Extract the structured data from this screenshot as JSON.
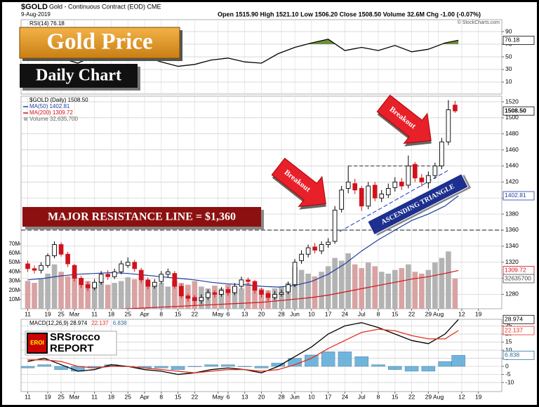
{
  "header": {
    "symbol": "$GOLD",
    "name": "Gold - Continuous Contract (EOD) CME",
    "date": "9-Aug-2019",
    "quote": "Open 1515.90  High 1521.10  Low 1506.20  Close 1508.50  Volume 32.6M  Chg -1.00 (-0.07%)",
    "credit": "© StockCharts.com"
  },
  "overlay": {
    "title": "Gold Price",
    "subtitle": "Daily Chart",
    "resistance_label": "MAJOR RESISTANCE LINE = $1,360",
    "breakouts": [
      "Breakout",
      "Breakout"
    ],
    "pattern": "ASCENDING TRIANGLE",
    "logo": {
      "badge": "EROI",
      "name": "SRSrocco",
      "tag": "REPORT"
    }
  },
  "chart_data": [
    {
      "type": "line",
      "title": "RSI(14) 76.18",
      "x": [
        0,
        5,
        10,
        15,
        20,
        25,
        30,
        35,
        40,
        45,
        50,
        55,
        60,
        65,
        70,
        75,
        80,
        85,
        90,
        95,
        100,
        105,
        110,
        115,
        120,
        125,
        129
      ],
      "series": [
        {
          "color": "#000000",
          "values": [
            55,
            62,
            48,
            40,
            52,
            58,
            45,
            50,
            42,
            35,
            38,
            45,
            48,
            42,
            40,
            55,
            65,
            72,
            78,
            60,
            65,
            60,
            68,
            58,
            62,
            72,
            76.18
          ],
          "value_label": "76.18"
        }
      ],
      "fill_above": 70,
      "fill_color": "#6e8f3c",
      "ylim": [
        -8.9,
        108.9
      ],
      "yticks": [
        90,
        70,
        50,
        30,
        10
      ],
      "grid": true
    },
    {
      "type": "candlestick",
      "title": "$GOLD (Daily) 1508.50",
      "x": [
        0,
        2,
        4,
        6,
        8,
        10,
        12,
        14,
        16,
        18,
        20,
        22,
        24,
        26,
        28,
        30,
        32,
        34,
        36,
        38,
        40,
        42,
        44,
        46,
        48,
        50,
        52,
        54,
        56,
        58,
        60,
        62,
        64,
        66,
        68,
        70,
        72,
        74,
        76,
        78,
        80,
        82,
        84,
        86,
        88,
        90,
        92,
        94,
        96,
        98,
        100,
        102,
        104,
        106,
        108,
        110,
        112,
        114,
        116,
        118,
        120,
        122,
        124,
        126,
        128
      ],
      "open": [
        1318,
        1312,
        1310,
        1316,
        1328,
        1342,
        1330,
        1316,
        1300,
        1292,
        1288,
        1295,
        1305,
        1302,
        1308,
        1316,
        1320,
        1310,
        1298,
        1290,
        1296,
        1305,
        1306,
        1290,
        1278,
        1276,
        1272,
        1276,
        1282,
        1280,
        1286,
        1282,
        1290,
        1298,
        1296,
        1285,
        1281,
        1276,
        1280,
        1283,
        1292,
        1322,
        1330,
        1339,
        1334,
        1342,
        1346,
        1386,
        1412,
        1418,
        1412,
        1390,
        1416,
        1400,
        1404,
        1413,
        1420,
        1416,
        1442,
        1425,
        1419,
        1428,
        1440,
        1470,
        1515.9
      ],
      "high": [
        1322,
        1316,
        1320,
        1331,
        1346,
        1345,
        1333,
        1318,
        1303,
        1296,
        1299,
        1309,
        1310,
        1312,
        1322,
        1326,
        1323,
        1313,
        1301,
        1299,
        1309,
        1312,
        1309,
        1293,
        1281,
        1279,
        1280,
        1286,
        1285,
        1289,
        1289,
        1294,
        1302,
        1301,
        1298,
        1288,
        1284,
        1284,
        1286,
        1296,
        1324,
        1335,
        1342,
        1344,
        1346,
        1350,
        1390,
        1415,
        1440,
        1424,
        1415,
        1420,
        1420,
        1410,
        1418,
        1426,
        1425,
        1453,
        1445,
        1430,
        1433,
        1444,
        1475,
        1522,
        1521.1
      ],
      "low": [
        1308,
        1306,
        1306,
        1313,
        1325,
        1327,
        1314,
        1296,
        1288,
        1284,
        1285,
        1292,
        1298,
        1299,
        1305,
        1313,
        1308,
        1294,
        1286,
        1287,
        1293,
        1301,
        1287,
        1275,
        1271,
        1266,
        1268,
        1273,
        1276,
        1277,
        1278,
        1279,
        1287,
        1292,
        1281,
        1276,
        1272,
        1273,
        1277,
        1280,
        1289,
        1318,
        1326,
        1331,
        1330,
        1338,
        1343,
        1382,
        1406,
        1405,
        1384,
        1386,
        1396,
        1395,
        1400,
        1408,
        1410,
        1412,
        1420,
        1414,
        1412,
        1424,
        1436,
        1466,
        1506.2
      ],
      "close": [
        1312,
        1310,
        1316,
        1328,
        1342,
        1330,
        1318,
        1300,
        1292,
        1288,
        1295,
        1305,
        1302,
        1308,
        1318,
        1320,
        1312,
        1298,
        1290,
        1295,
        1305,
        1308,
        1290,
        1278,
        1275,
        1272,
        1276,
        1282,
        1280,
        1285,
        1282,
        1290,
        1298,
        1296,
        1285,
        1280,
        1276,
        1280,
        1282,
        1292,
        1320,
        1330,
        1338,
        1335,
        1342,
        1345,
        1385,
        1410,
        1420,
        1410,
        1390,
        1415,
        1400,
        1405,
        1412,
        1420,
        1415,
        1440,
        1425,
        1420,
        1428,
        1440,
        1470,
        1510,
        1508.5
      ],
      "up_color": "#000000",
      "down_color": "#d1121b",
      "value_label": "1508.50",
      "volume": {
        "name": "Volume 32,635,700",
        "up_color": "#b3b3b3",
        "down_color": "#d9a3a3",
        "value_label": "32635700",
        "values": [
          30,
          28,
          32,
          38,
          48,
          40,
          35,
          38,
          33,
          30,
          28,
          30,
          26,
          28,
          30,
          34,
          32,
          36,
          30,
          26,
          28,
          24,
          30,
          28,
          26,
          30,
          24,
          22,
          25,
          22,
          26,
          24,
          22,
          28,
          25,
          22,
          20,
          22,
          24,
          28,
          45,
          42,
          38,
          35,
          40,
          46,
          55,
          52,
          60,
          48,
          44,
          50,
          46,
          40,
          38,
          42,
          44,
          48,
          40,
          38,
          42,
          50,
          55,
          62,
          32.6357
        ]
      },
      "lines": [
        {
          "name": "MA(50) 1402.81",
          "color": "#1f3f9f",
          "value_label": "1402.81",
          "x": [
            0,
            5,
            10,
            15,
            20,
            25,
            30,
            35,
            40,
            45,
            50,
            55,
            60,
            65,
            70,
            75,
            80,
            85,
            90,
            95,
            100,
            105,
            110,
            115,
            120,
            125,
            129
          ],
          "values": [
            1298,
            1300,
            1303,
            1305,
            1306,
            1307,
            1306,
            1304,
            1302,
            1300,
            1298,
            1295,
            1293,
            1292,
            1290,
            1289,
            1291,
            1296,
            1305,
            1318,
            1334,
            1348,
            1360,
            1372,
            1380,
            1390,
            1402.81
          ]
        },
        {
          "name": "MA(200) 1309.72",
          "color": "#d1121b",
          "value_label": "1309.72",
          "x": [
            0,
            5,
            10,
            15,
            20,
            25,
            30,
            35,
            40,
            45,
            50,
            55,
            60,
            65,
            70,
            75,
            80,
            85,
            90,
            95,
            100,
            105,
            110,
            115,
            120,
            125,
            129
          ],
          "values": [
            1252,
            1254,
            1256,
            1258,
            1260,
            1261,
            1262,
            1263,
            1264,
            1265,
            1266,
            1267,
            1268,
            1269,
            1270,
            1272,
            1274,
            1276,
            1279,
            1283,
            1287,
            1291,
            1295,
            1299,
            1302,
            1306,
            1309.72
          ]
        }
      ],
      "resistance": 1360,
      "triangle_top": 1440,
      "ylim": [
        1262,
        1527
      ],
      "yticks": [
        1520,
        1500,
        1480,
        1460,
        1440,
        1420,
        1400,
        1380,
        1360,
        1340,
        1320,
        1300,
        1280
      ],
      "vlim": [
        0,
        230
      ],
      "vticks": [
        {
          "value": 70,
          "label": "70M"
        },
        {
          "value": 60,
          "label": "60M"
        },
        {
          "value": 50,
          "label": "50M"
        },
        {
          "value": 40,
          "label": "40M"
        },
        {
          "value": 30,
          "label": "30M"
        },
        {
          "value": 20,
          "label": "20M"
        },
        {
          "value": 10,
          "label": "10M"
        }
      ],
      "xlim": [
        -2,
        142
      ],
      "xticks": [
        {
          "value": 0,
          "label": "11"
        },
        {
          "value": 6,
          "label": "19"
        },
        {
          "value": 10,
          "label": "25"
        },
        {
          "value": 14,
          "label": "Mar"
        },
        {
          "value": 20,
          "label": "11"
        },
        {
          "value": 25,
          "label": "18"
        },
        {
          "value": 30,
          "label": "25"
        },
        {
          "value": 35,
          "label": "Apr"
        },
        {
          "value": 40,
          "label": "8"
        },
        {
          "value": 45,
          "label": "15"
        },
        {
          "value": 50,
          "label": "22"
        },
        {
          "value": 57,
          "label": "May"
        },
        {
          "value": 60,
          "label": "6"
        },
        {
          "value": 65,
          "label": "13"
        },
        {
          "value": 70,
          "label": "20"
        },
        {
          "value": 76,
          "label": "28"
        },
        {
          "value": 80,
          "label": "Jun"
        },
        {
          "value": 85,
          "label": "10"
        },
        {
          "value": 90,
          "label": "17"
        },
        {
          "value": 95,
          "label": "24"
        },
        {
          "value": 100,
          "label": "Jul"
        },
        {
          "value": 105,
          "label": "8"
        },
        {
          "value": 110,
          "label": "15"
        },
        {
          "value": 115,
          "label": "22"
        },
        {
          "value": 120,
          "label": "29"
        },
        {
          "value": 123,
          "label": "Aug"
        },
        {
          "value": 130,
          "label": "12"
        },
        {
          "value": 135,
          "label": "19"
        }
      ],
      "grid": true
    },
    {
      "type": "line",
      "x": [
        0,
        5,
        10,
        15,
        20,
        25,
        30,
        35,
        40,
        45,
        50,
        55,
        60,
        65,
        70,
        75,
        80,
        85,
        90,
        95,
        100,
        105,
        110,
        115,
        120,
        125,
        129
      ],
      "series": [
        {
          "name": "MACD(12,26,9) 28.974",
          "color": "#000000",
          "value_label": "28.974",
          "values": [
            3,
            5,
            1,
            -3,
            -2,
            1,
            0,
            -2,
            -3,
            -5,
            -4,
            -2,
            -1,
            -2,
            -4,
            0,
            6,
            12,
            20,
            25,
            27,
            24,
            20,
            16,
            14,
            20,
            28.974
          ]
        },
        {
          "name": "22.137",
          "color": "#e0301e",
          "value_label": "22.137",
          "values": [
            4,
            4,
            3,
            0,
            -1,
            0,
            0,
            -1,
            -2,
            -3,
            -4,
            -3,
            -2,
            -2,
            -3,
            -2,
            1,
            5,
            11,
            16,
            21,
            23,
            22,
            19,
            17,
            17,
            22.137
          ]
        },
        {
          "name": "6.838",
          "type": "bar",
          "color": "#5aa9d6",
          "value_label": "6.838",
          "values": [
            -1,
            1,
            -2,
            -3,
            -1,
            1,
            0,
            -1,
            -1,
            -2,
            0,
            1,
            1,
            0,
            -1,
            2,
            5,
            7,
            9,
            9,
            6,
            1,
            -2,
            -3,
            -3,
            3,
            6.838
          ]
        }
      ],
      "ylim": [
        -15.6,
        29.1
      ],
      "yticks": [
        25,
        20,
        15,
        10,
        5,
        0,
        -5,
        -10
      ],
      "xlim": [
        -2,
        142
      ],
      "xticks": [
        {
          "value": 0,
          "label": "11"
        },
        {
          "value": 6,
          "label": "19"
        },
        {
          "value": 10,
          "label": "25"
        },
        {
          "value": 14,
          "label": "Mar"
        },
        {
          "value": 20,
          "label": "11"
        },
        {
          "value": 25,
          "label": "18"
        },
        {
          "value": 30,
          "label": "25"
        },
        {
          "value": 35,
          "label": "Apr"
        },
        {
          "value": 40,
          "label": "8"
        },
        {
          "value": 45,
          "label": "15"
        },
        {
          "value": 50,
          "label": "22"
        },
        {
          "value": 57,
          "label": "May"
        },
        {
          "value": 60,
          "label": "6"
        },
        {
          "value": 65,
          "label": "13"
        },
        {
          "value": 70,
          "label": "20"
        },
        {
          "value": 76,
          "label": "28"
        },
        {
          "value": 80,
          "label": "Jun"
        },
        {
          "value": 85,
          "label": "10"
        },
        {
          "value": 90,
          "label": "17"
        },
        {
          "value": 95,
          "label": "24"
        },
        {
          "value": 100,
          "label": "Jul"
        },
        {
          "value": 105,
          "label": "8"
        },
        {
          "value": 110,
          "label": "15"
        },
        {
          "value": 115,
          "label": "22"
        },
        {
          "value": 120,
          "label": "29"
        },
        {
          "value": 123,
          "label": "Aug"
        },
        {
          "value": 130,
          "label": "12"
        },
        {
          "value": 135,
          "label": "19"
        }
      ],
      "grid": true
    }
  ]
}
